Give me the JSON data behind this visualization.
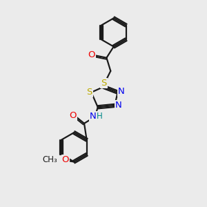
{
  "bg_color": "#ebebeb",
  "bond_color": "#1a1a1a",
  "bond_width": 1.6,
  "atom_colors": {
    "C": "#1a1a1a",
    "N": "#0000ee",
    "O": "#ee0000",
    "S": "#bbaa00",
    "NH": "#0000ee",
    "H": "#008888"
  },
  "font_size": 9.5,
  "font_size_small": 8.5
}
